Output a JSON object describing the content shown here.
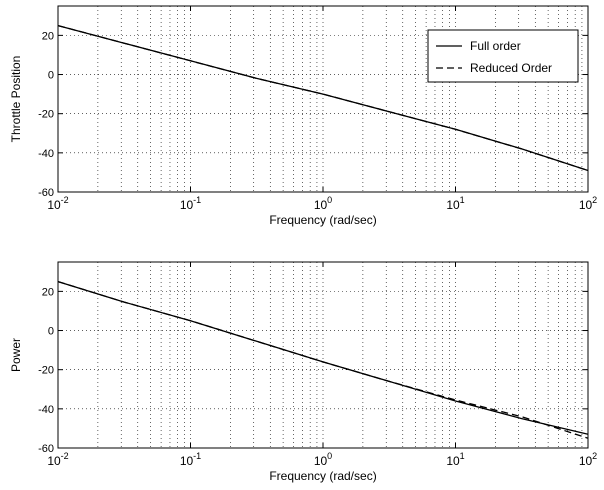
{
  "chart_data": [
    {
      "type": "line",
      "xscale": "log",
      "xlim": [
        0.01,
        100
      ],
      "ylim": [
        -60,
        35
      ],
      "xlabel": "Frequency (rad/sec)",
      "ylabel": "Throttle Position",
      "xticks": [
        0.01,
        0.1,
        1,
        10,
        100
      ],
      "xtick_labels": [
        {
          "base": "10",
          "exp": "-2"
        },
        {
          "base": "10",
          "exp": "-1"
        },
        {
          "base": "10",
          "exp": "0"
        },
        {
          "base": "10",
          "exp": "1"
        },
        {
          "base": "10",
          "exp": "2"
        }
      ],
      "yticks": [
        -60,
        -40,
        -20,
        0,
        20
      ],
      "ytick_labels": [
        "-60",
        "-40",
        "-20",
        "0",
        "20"
      ],
      "grid": true,
      "legend_position": "top-right",
      "series": [
        {
          "name": "Full order",
          "style": "solid",
          "x": [
            0.01,
            0.0316,
            0.1,
            0.316,
            1,
            3.16,
            10,
            31.6,
            100
          ],
          "y": [
            25,
            16,
            7,
            -2,
            -10,
            -19,
            -28,
            -38,
            -49
          ]
        },
        {
          "name": "Reduced Order",
          "style": "dashed",
          "x": [
            0.01,
            0.0316,
            0.1,
            0.316,
            1,
            3.16,
            10,
            31.6,
            100
          ],
          "y": [
            25,
            16,
            7,
            -2,
            -10,
            -19,
            -28,
            -38,
            -49
          ]
        }
      ]
    },
    {
      "type": "line",
      "xscale": "log",
      "xlim": [
        0.01,
        100
      ],
      "ylim": [
        -60,
        35
      ],
      "xlabel": "Frequency (rad/sec)",
      "ylabel": "Power",
      "xticks": [
        0.01,
        0.1,
        1,
        10,
        100
      ],
      "xtick_labels": [
        {
          "base": "10",
          "exp": "-2"
        },
        {
          "base": "10",
          "exp": "-1"
        },
        {
          "base": "10",
          "exp": "0"
        },
        {
          "base": "10",
          "exp": "1"
        },
        {
          "base": "10",
          "exp": "2"
        }
      ],
      "yticks": [
        -60,
        -40,
        -20,
        0,
        20
      ],
      "ytick_labels": [
        "-60",
        "-40",
        "-20",
        "0",
        "20"
      ],
      "grid": true,
      "series": [
        {
          "name": "Full order",
          "style": "solid",
          "x": [
            0.01,
            0.0316,
            0.1,
            0.316,
            1,
            3.16,
            10,
            31.6,
            100
          ],
          "y": [
            25,
            14.5,
            5,
            -5.5,
            -16,
            -26,
            -36,
            -45,
            -53
          ]
        },
        {
          "name": "Reduced Order",
          "style": "dashed",
          "x": [
            0.01,
            0.0316,
            0.1,
            0.316,
            1,
            3.16,
            10,
            31.6,
            100
          ],
          "y": [
            25,
            14.5,
            5,
            -5.5,
            -16,
            -26,
            -35.5,
            -44,
            -55
          ]
        }
      ]
    }
  ]
}
